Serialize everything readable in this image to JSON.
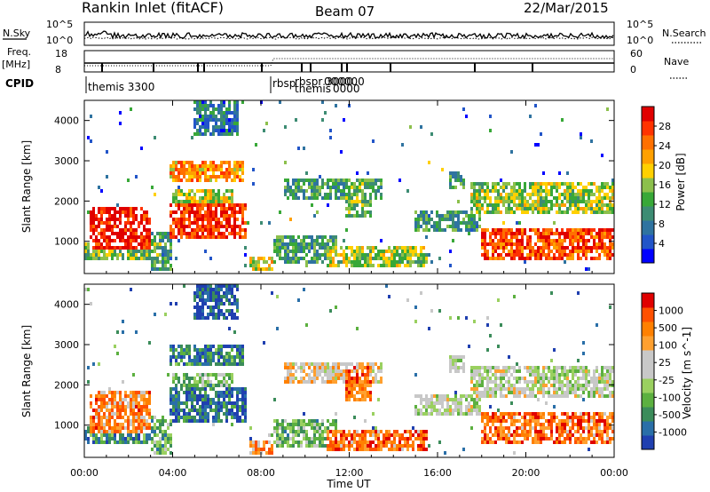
{
  "header": {
    "station": "Rankin Inlet (fitACF)",
    "beam": "Beam 07",
    "date": "22/Mar/2015"
  },
  "top_panel": {
    "nsky_label": "N.Sky",
    "nsky_ticks": [
      "10^5",
      "10^0"
    ],
    "nsearch_label": "N.Search",
    "nsearch_ticks": [
      "10^5",
      "10^0"
    ],
    "freq_label_line1": "Freq.",
    "freq_label_line2": "[MHz]",
    "freq_ticks": [
      "18",
      "8"
    ],
    "nave_label": "Nave",
    "nave_ticks": [
      "60",
      "0"
    ],
    "cpid_label": "CPID",
    "cpid_text_1": "themis 3300",
    "cpid_text_2": "rbsp",
    "cpid_text_3": "rbspr 3000",
    "cpid_text_4": "themis",
    "cpid_text_5": "000000",
    "cpid_text_6": "0000"
  },
  "chart_data": [
    {
      "type": "heatmap",
      "title": "",
      "xlabel": "Time UT",
      "ylabel": "Slant Range [km]",
      "x_ticks": [
        "00:00",
        "04:00",
        "08:00",
        "12:00",
        "16:00",
        "20:00",
        "00:00"
      ],
      "y_ticks": [
        "1000",
        "2000",
        "3000",
        "4000"
      ],
      "ylim": [
        200,
        4500
      ],
      "colorbar_label": "Power [dB]",
      "colorbar_ticks": [
        "28",
        "24",
        "20",
        "16",
        "12",
        "8",
        "4"
      ],
      "colorscale": [
        "#0000ff",
        "#2255c8",
        "#2f73a0",
        "#3d8c73",
        "#38a838",
        "#8cc04c",
        "#ffd000",
        "#ffa000",
        "#ff7000",
        "#ff3300",
        "#e00000"
      ]
    },
    {
      "type": "heatmap",
      "title": "",
      "xlabel": "Time UT",
      "ylabel": "Slant Range [km]",
      "x_ticks": [
        "00:00",
        "04:00",
        "08:00",
        "12:00",
        "16:00",
        "20:00",
        "00:00"
      ],
      "y_ticks": [
        "1000",
        "2000",
        "3000",
        "4000"
      ],
      "ylim": [
        200,
        4500
      ],
      "colorbar_label": "Velocity [m s^-1]",
      "colorbar_ticks": [
        "1000",
        "500",
        "100",
        "25",
        "-25",
        "-100",
        "-500",
        "-1000"
      ],
      "colorscale": [
        "#2040b0",
        "#2a6fa8",
        "#3b8c5a",
        "#5cb040",
        "#9ad060",
        "#c8c8c8",
        "#c8c8c8",
        "#ffa030",
        "#ff8000",
        "#ff5000",
        "#e00000"
      ]
    }
  ]
}
